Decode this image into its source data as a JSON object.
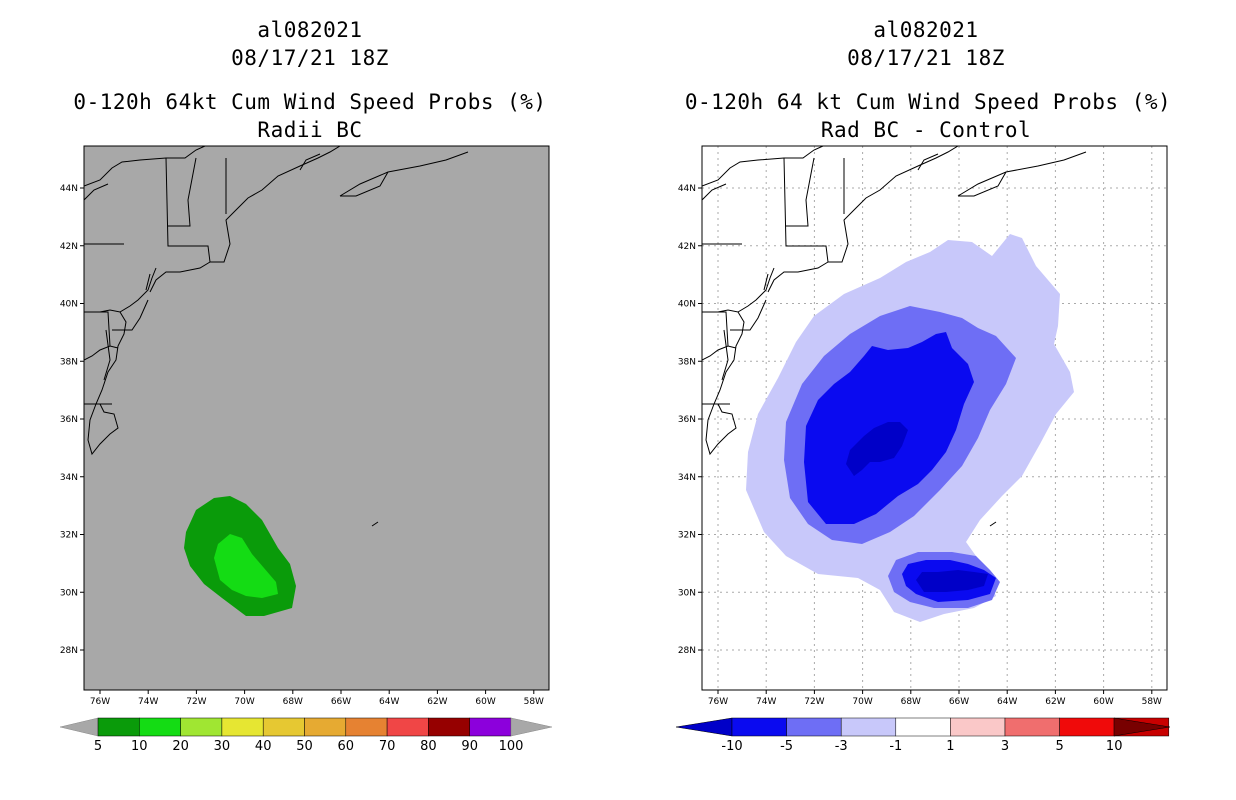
{
  "left_panel": {
    "storm_id": "al082021",
    "datetime": "08/17/21 18Z",
    "product": "0-120h 64kt Cum Wind Speed Probs (%)",
    "subtitle": "Radii BC",
    "lat_labels": [
      "44N",
      "42N",
      "40N",
      "38N",
      "36N",
      "34N",
      "32N",
      "30N",
      "28N"
    ],
    "lon_labels": [
      "76W",
      "74W",
      "72W",
      "70W",
      "68W",
      "66W",
      "64W",
      "62W",
      "60W",
      "58W"
    ],
    "colorbar": {
      "labels": [
        "5",
        "10",
        "20",
        "30",
        "40",
        "50",
        "60",
        "70",
        "80",
        "90",
        "100"
      ],
      "colors": [
        "#0a9b0a",
        "#14dc14",
        "#a0e632",
        "#e6e632",
        "#e6c832",
        "#e6aa32",
        "#e68232",
        "#f04646",
        "#960000",
        "#8c00dc"
      ]
    }
  },
  "right_panel": {
    "storm_id": "al082021",
    "datetime": "08/17/21 18Z",
    "product": "0-120h 64 kt Cum Wind Speed Probs (%)",
    "subtitle": "Rad BC - Control",
    "lat_labels": [
      "44N",
      "42N",
      "40N",
      "38N",
      "36N",
      "34N",
      "32N",
      "30N",
      "28N"
    ],
    "lon_labels": [
      "76W",
      "74W",
      "72W",
      "70W",
      "68W",
      "66W",
      "64W",
      "62W",
      "60W",
      "58W"
    ],
    "colorbar": {
      "labels": [
        "-10",
        "-5",
        "-3",
        "-1",
        "1",
        "3",
        "5",
        "10"
      ],
      "colors": [
        "#0000c8",
        "#0a0af0",
        "#6e6ef5",
        "#c8c8fa",
        "#ffffff",
        "#fac8c8",
        "#f06e6e",
        "#f00a0a",
        "#c80000",
        "#780000"
      ]
    }
  }
}
